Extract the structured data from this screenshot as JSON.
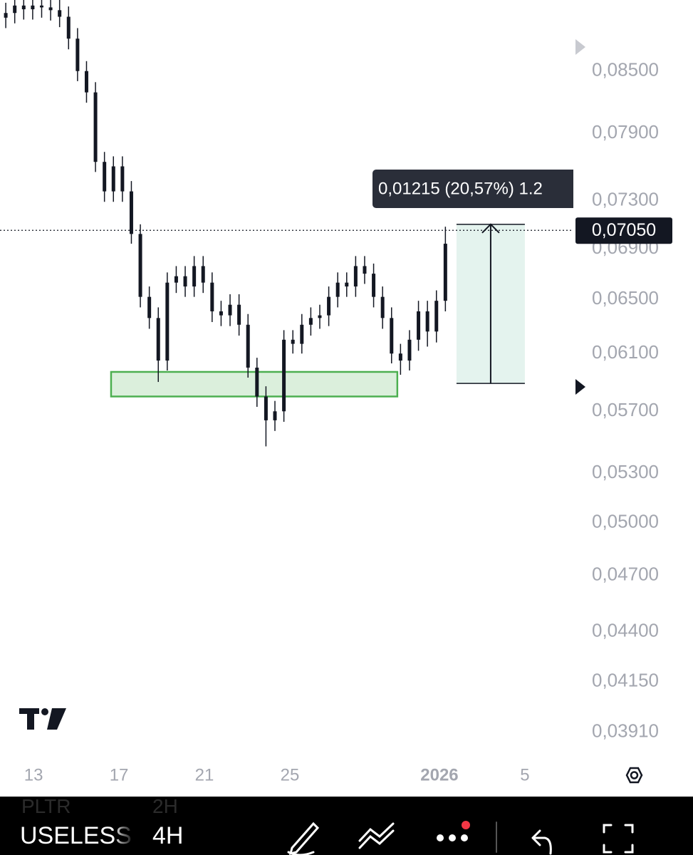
{
  "chart_data": {
    "type": "candlestick",
    "log_scale": true,
    "color": "#131722",
    "ylim": [
      0.03774,
      0.0924
    ],
    "yticks": [
      {
        "value": 0.085,
        "label": "0,08500"
      },
      {
        "value": 0.079,
        "label": "0,07900"
      },
      {
        "value": 0.073,
        "label": "0,07300"
      },
      {
        "value": 0.069,
        "label": "0,06900"
      },
      {
        "value": 0.065,
        "label": "0,06500"
      },
      {
        "value": 0.061,
        "label": "0,06100"
      },
      {
        "value": 0.057,
        "label": "0,05700"
      },
      {
        "value": 0.053,
        "label": "0,05300"
      },
      {
        "value": 0.05,
        "label": "0,05000"
      },
      {
        "value": 0.047,
        "label": "0,04700"
      },
      {
        "value": 0.044,
        "label": "0,04400"
      },
      {
        "value": 0.0415,
        "label": "0,04150"
      },
      {
        "value": 0.0391,
        "label": "0,03910"
      }
    ],
    "xlim": [
      11.43,
      38.27
    ],
    "xticks": [
      13,
      17,
      21,
      25,
      {
        "value": 32,
        "label": "2026",
        "bold": true
      },
      {
        "value": 36,
        "label": "5"
      }
    ],
    "candles": {
      "x": [
        11.7,
        12.12,
        12.54,
        12.96,
        13.38,
        13.8,
        14.22,
        14.64,
        15.06,
        15.48,
        15.9,
        16.32,
        16.74,
        17.16,
        17.58,
        18.0,
        18.42,
        18.84,
        19.26,
        19.68,
        20.1,
        20.52,
        20.94,
        21.36,
        21.78,
        22.2,
        22.62,
        23.04,
        23.46,
        23.88,
        24.3,
        24.72,
        25.14,
        25.56,
        25.98,
        26.4,
        26.82,
        27.24,
        27.66,
        28.08,
        28.5,
        28.92,
        29.34,
        29.76,
        30.18,
        30.6,
        31.02,
        31.44,
        31.86,
        32.28
      ],
      "open": [
        0.0905,
        0.091,
        0.0918,
        0.0914,
        0.0918,
        0.0916,
        0.0913,
        0.0906,
        0.0883,
        0.085,
        0.0829,
        0.0764,
        0.0738,
        0.076,
        0.0738,
        0.0702,
        0.0652,
        0.0636,
        0.0605,
        0.0663,
        0.0668,
        0.066,
        0.0676,
        0.0663,
        0.0641,
        0.0638,
        0.0646,
        0.0631,
        0.06,
        0.058,
        0.0564,
        0.057,
        0.062,
        0.0617,
        0.0631,
        0.0636,
        0.0638,
        0.0652,
        0.0663,
        0.066,
        0.0676,
        0.067,
        0.0652,
        0.0636,
        0.061,
        0.0605,
        0.062,
        0.0641,
        0.0626,
        0.0649
      ],
      "high": [
        0.0921,
        0.0929,
        0.0929,
        0.0929,
        0.0929,
        0.0927,
        0.0924,
        0.0917,
        0.0894,
        0.086,
        0.0839,
        0.0773,
        0.0769,
        0.0769,
        0.0747,
        0.071,
        0.066,
        0.0644,
        0.0671,
        0.0676,
        0.0676,
        0.0684,
        0.0684,
        0.0671,
        0.0649,
        0.0654,
        0.0654,
        0.0639,
        0.0607,
        0.0587,
        0.0577,
        0.0627,
        0.0627,
        0.0639,
        0.0644,
        0.0646,
        0.066,
        0.0671,
        0.0671,
        0.0684,
        0.0684,
        0.0678,
        0.066,
        0.0644,
        0.0617,
        0.0627,
        0.0649,
        0.0649,
        0.0657,
        0.0708
      ],
      "low": [
        0.0894,
        0.0899,
        0.0903,
        0.0903,
        0.0905,
        0.0902,
        0.0895,
        0.0872,
        0.084,
        0.0819,
        0.0755,
        0.0729,
        0.0729,
        0.0729,
        0.0694,
        0.0644,
        0.0628,
        0.059,
        0.0598,
        0.0655,
        0.0652,
        0.0652,
        0.0655,
        0.0633,
        0.063,
        0.063,
        0.0623,
        0.0593,
        0.0573,
        0.0547,
        0.0557,
        0.0563,
        0.061,
        0.061,
        0.0623,
        0.0628,
        0.063,
        0.0644,
        0.0652,
        0.0652,
        0.0662,
        0.0644,
        0.0628,
        0.0603,
        0.0595,
        0.0598,
        0.0612,
        0.0615,
        0.0618,
        0.0641
      ],
      "close": [
        0.091,
        0.0918,
        0.0914,
        0.0918,
        0.0916,
        0.0913,
        0.0906,
        0.0883,
        0.085,
        0.0829,
        0.0764,
        0.0738,
        0.076,
        0.0738,
        0.0702,
        0.0652,
        0.0636,
        0.0605,
        0.0663,
        0.0668,
        0.066,
        0.0676,
        0.0663,
        0.0641,
        0.0638,
        0.0646,
        0.0631,
        0.06,
        0.058,
        0.0564,
        0.057,
        0.062,
        0.0617,
        0.0631,
        0.0636,
        0.0638,
        0.0652,
        0.0663,
        0.066,
        0.0676,
        0.067,
        0.0652,
        0.0636,
        0.061,
        0.0605,
        0.062,
        0.0641,
        0.0626,
        0.0649,
        0.0694
      ]
    },
    "last_price": {
      "value": 0.0705,
      "label": "0,07050"
    },
    "zone": {
      "x": [
        16.63,
        30.03
      ],
      "y": [
        0.058,
        0.0597
      ],
      "color": "#4caf50"
    },
    "measure": {
      "label": "0,01215 (20,57%) 1.2",
      "x": [
        32.8,
        36.0
      ],
      "y": [
        0.0589,
        0.071
      ]
    }
  },
  "app": {
    "prev_symbol": "PLTR",
    "prev_interval": "2H",
    "symbol": "USELESS",
    "interval": "4H"
  }
}
